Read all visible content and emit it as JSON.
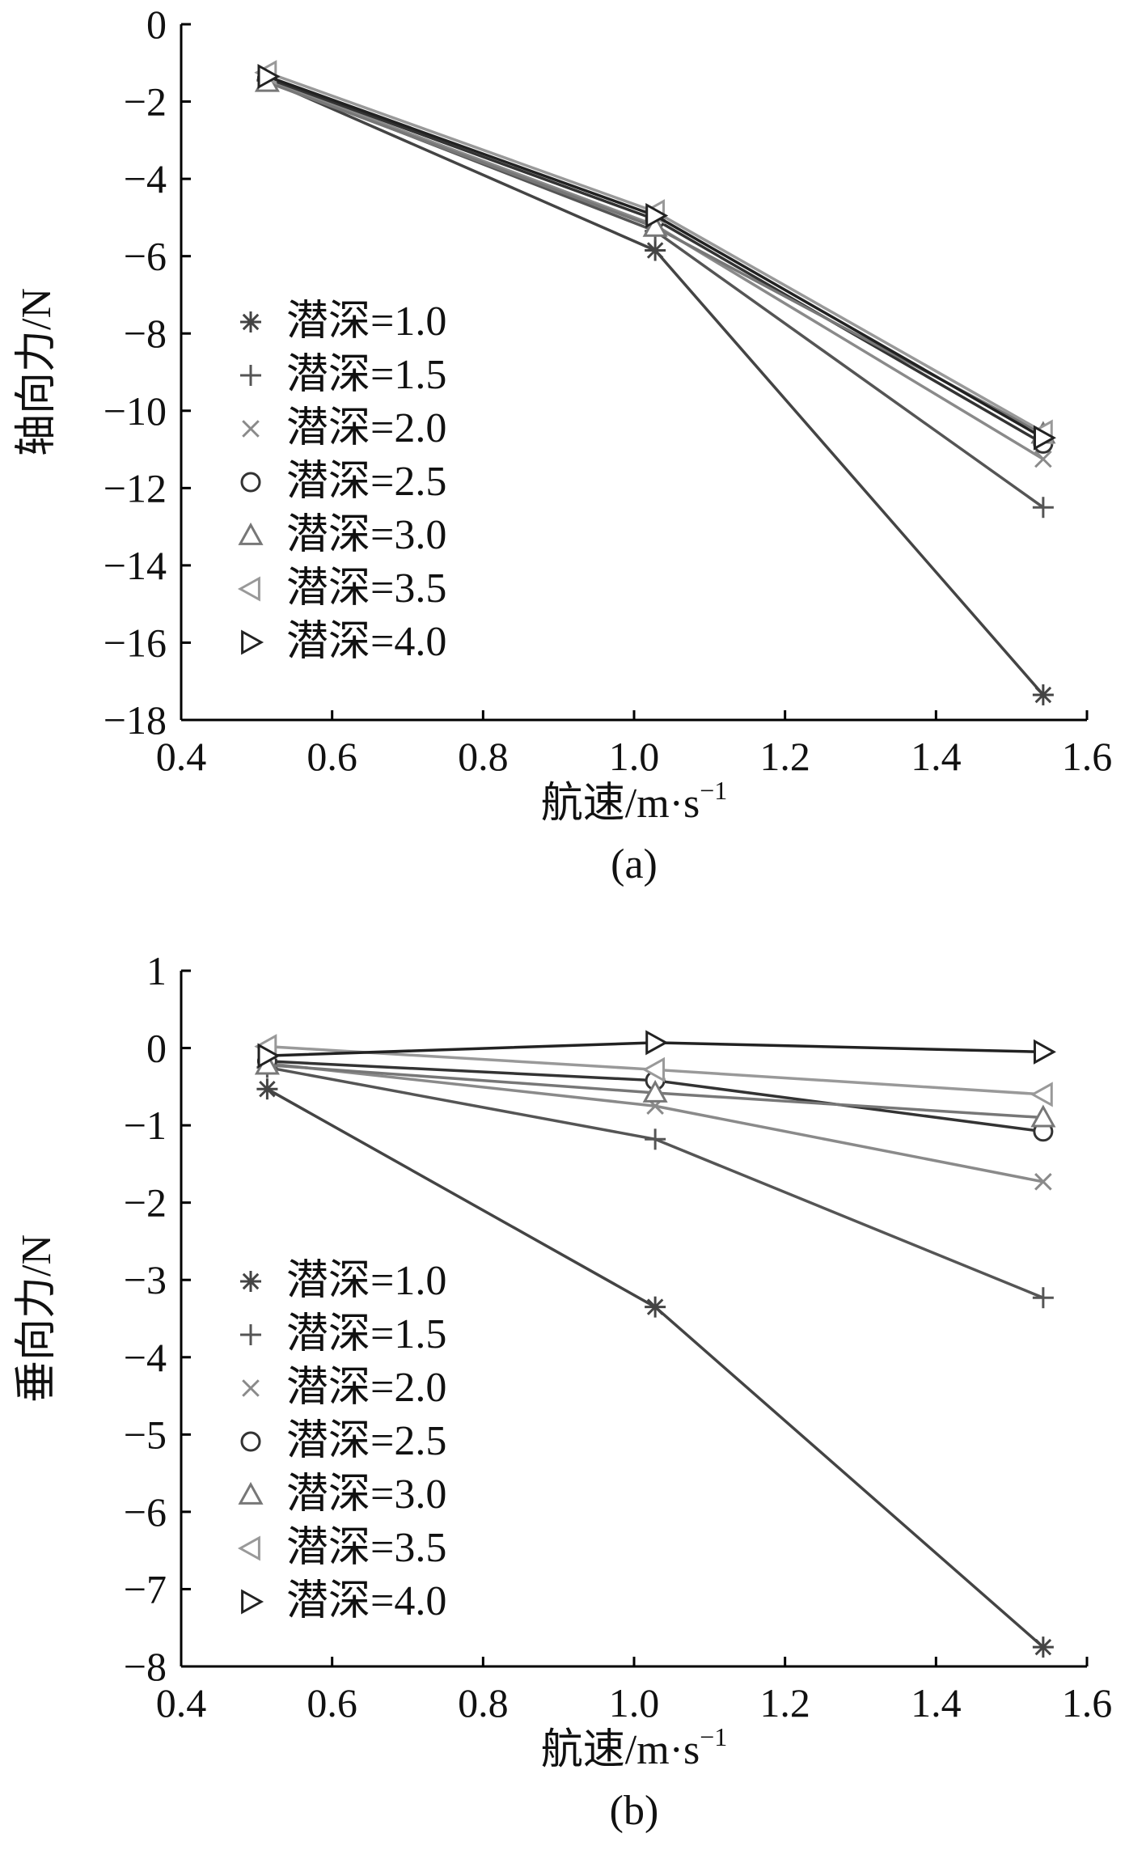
{
  "chart_data": [
    {
      "type": "line",
      "panel_label": "(a)",
      "title": "",
      "xlabel": "航速/m·s",
      "xlabel_sup": "−1",
      "ylabel": "轴向力/N",
      "xlim": [
        0.4,
        1.6
      ],
      "ylim": [
        -18,
        0
      ],
      "xticks": [
        0.4,
        0.6,
        0.8,
        1.0,
        1.2,
        1.4,
        1.6
      ],
      "xtick_labels": [
        "0.4",
        "0.6",
        "0.8",
        "1.0",
        "1.2",
        "1.4",
        "1.6"
      ],
      "yticks": [
        0,
        -2,
        -4,
        -6,
        -8,
        -10,
        -12,
        -14,
        -16,
        -18
      ],
      "ytick_labels": [
        "0",
        "−2",
        "−4",
        "−6",
        "−8",
        "−10",
        "−12",
        "−14",
        "−16",
        "−18"
      ],
      "grid": false,
      "legend_position": "left-middle",
      "x": [
        0.514,
        1.028,
        1.542
      ],
      "series": [
        {
          "name": "潜深=1.0",
          "marker": "asterisk",
          "color": "#444444",
          "values": [
            -1.45,
            -5.85,
            -17.35
          ]
        },
        {
          "name": "潜深=1.5",
          "marker": "plus",
          "color": "#555555",
          "values": [
            -1.45,
            -5.35,
            -12.5
          ]
        },
        {
          "name": "潜深=2.0",
          "marker": "x",
          "color": "#8a8a8a",
          "values": [
            -1.45,
            -5.2,
            -11.25
          ]
        },
        {
          "name": "潜深=2.5",
          "marker": "circle",
          "color": "#333333",
          "values": [
            -1.4,
            -5.05,
            -10.85
          ]
        },
        {
          "name": "潜深=3.0",
          "marker": "triangle-up",
          "color": "#777777",
          "values": [
            -1.5,
            -5.25,
            -10.6
          ]
        },
        {
          "name": "潜深=3.5",
          "marker": "triangle-left",
          "color": "#999999",
          "values": [
            -1.25,
            -4.85,
            -10.55
          ]
        },
        {
          "name": "潜深=4.0",
          "marker": "triangle-right",
          "color": "#222222",
          "values": [
            -1.35,
            -4.95,
            -10.7
          ]
        }
      ]
    },
    {
      "type": "line",
      "panel_label": "(b)",
      "title": "",
      "xlabel": "航速/m·s",
      "xlabel_sup": "−1",
      "ylabel": "垂向力/N",
      "xlim": [
        0.4,
        1.6
      ],
      "ylim": [
        -8,
        1
      ],
      "xticks": [
        0.4,
        0.6,
        0.8,
        1.0,
        1.2,
        1.4,
        1.6
      ],
      "xtick_labels": [
        "0.4",
        "0.6",
        "0.8",
        "1.0",
        "1.2",
        "1.4",
        "1.6"
      ],
      "yticks": [
        1,
        0,
        -1,
        -2,
        -3,
        -4,
        -5,
        -6,
        -7,
        -8
      ],
      "ytick_labels": [
        "1",
        "0",
        "−1",
        "−2",
        "−3",
        "−4",
        "−5",
        "−6",
        "−7",
        "−8"
      ],
      "grid": false,
      "legend_position": "left-middle",
      "x": [
        0.514,
        1.028,
        1.542
      ],
      "series": [
        {
          "name": "潜深=1.0",
          "marker": "asterisk",
          "color": "#444444",
          "values": [
            -0.53,
            -3.35,
            -7.75
          ]
        },
        {
          "name": "潜深=1.5",
          "marker": "plus",
          "color": "#555555",
          "values": [
            -0.25,
            -1.18,
            -3.23
          ]
        },
        {
          "name": "潜深=2.0",
          "marker": "x",
          "color": "#8a8a8a",
          "values": [
            -0.2,
            -0.75,
            -1.73
          ]
        },
        {
          "name": "潜深=2.5",
          "marker": "circle",
          "color": "#333333",
          "values": [
            -0.17,
            -0.42,
            -1.08
          ]
        },
        {
          "name": "潜深=3.0",
          "marker": "triangle-up",
          "color": "#777777",
          "values": [
            -0.22,
            -0.58,
            -0.9
          ]
        },
        {
          "name": "潜深=3.5",
          "marker": "triangle-left",
          "color": "#999999",
          "values": [
            0.02,
            -0.28,
            -0.6
          ]
        },
        {
          "name": "潜深=4.0",
          "marker": "triangle-right",
          "color": "#222222",
          "values": [
            -0.1,
            0.07,
            -0.05
          ]
        }
      ]
    }
  ]
}
